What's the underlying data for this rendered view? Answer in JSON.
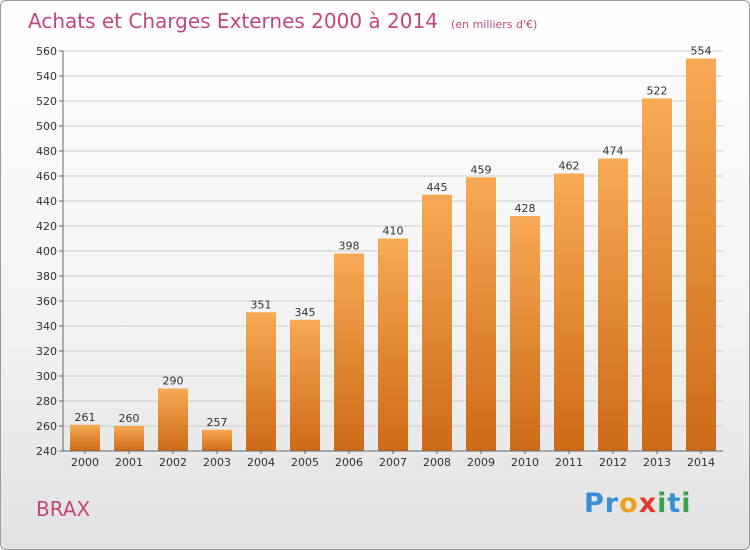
{
  "title": "Achats et Charges Externes 2000 à 2014",
  "subtitle": "(en milliers d'€)",
  "commune": "BRAX",
  "logo": {
    "letters": [
      "P",
      "r",
      "o",
      "x",
      "i",
      "t",
      "i"
    ],
    "colors": [
      "#3a8fd4",
      "#3a8fd4",
      "#e9a21b",
      "#e23a2c",
      "#3aa24a",
      "#3a8fd4",
      "#3aa24a"
    ]
  },
  "colors": {
    "bar_light": "#f7aa55",
    "bar_dark": "#cd6a17",
    "text": "#c2477b"
  },
  "chart_data": {
    "type": "bar",
    "title": "Achats et Charges Externes 2000 à 2014",
    "subtitle": "(en milliers d'€)",
    "categories": [
      "2000",
      "2001",
      "2002",
      "2003",
      "2004",
      "2005",
      "2006",
      "2007",
      "2008",
      "2009",
      "2010",
      "2011",
      "2012",
      "2013",
      "2014"
    ],
    "values": [
      261,
      260,
      290,
      257,
      351,
      345,
      398,
      410,
      445,
      459,
      428,
      462,
      474,
      522,
      554
    ],
    "ylim": [
      240,
      560
    ],
    "yticks": [
      240,
      260,
      280,
      300,
      320,
      340,
      360,
      380,
      400,
      420,
      440,
      460,
      480,
      500,
      520,
      540,
      560
    ],
    "grid": true,
    "legend": "none"
  }
}
